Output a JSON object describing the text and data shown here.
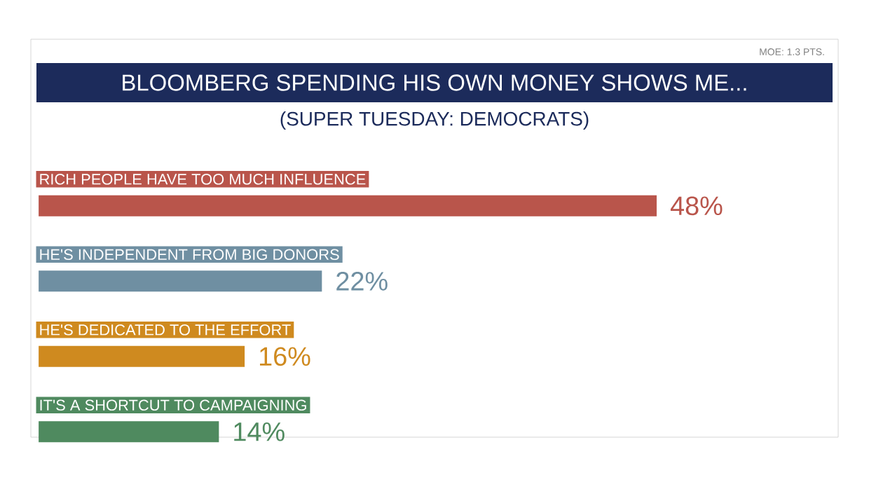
{
  "chart_data": {
    "type": "bar",
    "orientation": "horizontal",
    "title": "BLOOMBERG SPENDING HIS OWN MONEY SHOWS ME...",
    "subtitle": "(SUPER TUESDAY: DEMOCRATS)",
    "annotations": [
      "MOE: 1.3 PTS."
    ],
    "categories": [
      "RICH PEOPLE HAVE TOO MUCH INFLUENCE",
      "HE'S INDEPENDENT FROM BIG DONORS",
      "HE'S DEDICATED TO THE EFFORT",
      "IT'S A SHORTCUT TO CAMPAIGNING"
    ],
    "values": [
      48,
      22,
      16,
      14
    ],
    "value_labels": [
      "48%",
      "22%",
      "16%",
      "14%"
    ],
    "colors": [
      "#b9554b",
      "#6f8fa2",
      "#cf8a1f",
      "#4f8a5f"
    ]
  }
}
